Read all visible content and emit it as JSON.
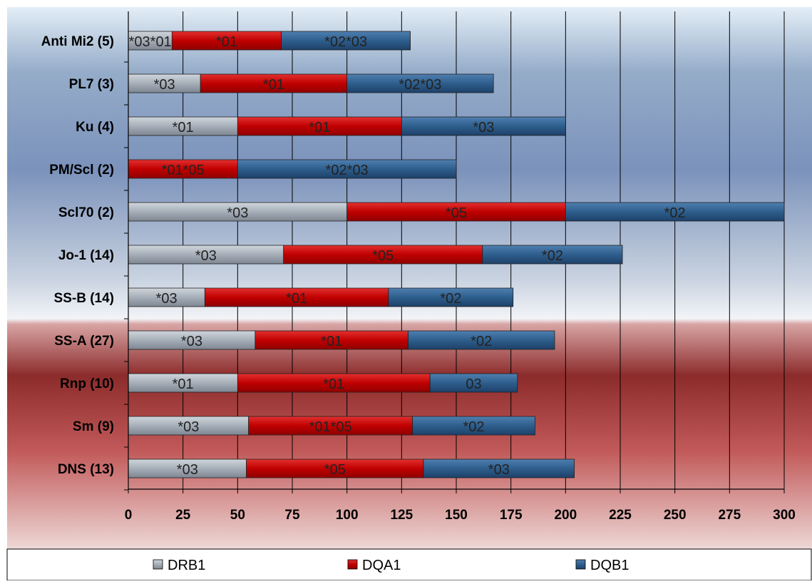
{
  "chart_data": {
    "type": "bar",
    "orientation": "horizontal",
    "stacked": true,
    "categories": [
      "Anti Mi2 (5)",
      "PL7 (3)",
      "Ku (4)",
      "PM/Scl (2)",
      "Scl70 (2)",
      "Jo-1 (14)",
      "SS-B (14)",
      "SS-A (27)",
      "Rnp (10)",
      "Sm (9)",
      "DNS (13)"
    ],
    "series": [
      {
        "name": "DRB1",
        "color": "#a6aeb8",
        "values": [
          20,
          33,
          50,
          0,
          100,
          71,
          35,
          58,
          50,
          55,
          54
        ],
        "labels": [
          "*03*01",
          "*03",
          "*01",
          "",
          "*03",
          "*03",
          "*03",
          "*03",
          "*01",
          "*03",
          "*03"
        ]
      },
      {
        "name": "DQA1",
        "color": "#c00000",
        "values": [
          50,
          67,
          75,
          50,
          100,
          91,
          84,
          70,
          88,
          75,
          81
        ],
        "labels": [
          "*01",
          "*01",
          "*01",
          "*01*05",
          "*05",
          "*05",
          "*01",
          "*01",
          "*01",
          "*01*05",
          "*05"
        ]
      },
      {
        "name": "DQB1",
        "color": "#2e5e8c",
        "values": [
          59,
          67,
          75,
          100,
          100,
          64,
          57,
          67,
          40,
          56,
          69
        ],
        "labels": [
          "*02*03",
          "*02*03",
          "*03",
          "*02*03",
          "*02",
          "*02",
          "*02",
          "*02",
          "03",
          "*02",
          "*03"
        ]
      }
    ],
    "xlim": [
      0,
      300
    ],
    "x_ticks": [
      "0",
      "25",
      "50",
      "75",
      "100",
      "125",
      "150",
      "175",
      "200",
      "225",
      "250",
      "275",
      "300"
    ],
    "grid": true,
    "legend": {
      "position": "bottom",
      "entries": [
        "DRB1",
        "DQA1",
        "DQB1"
      ]
    },
    "title": "",
    "xlabel": "",
    "ylabel": ""
  }
}
